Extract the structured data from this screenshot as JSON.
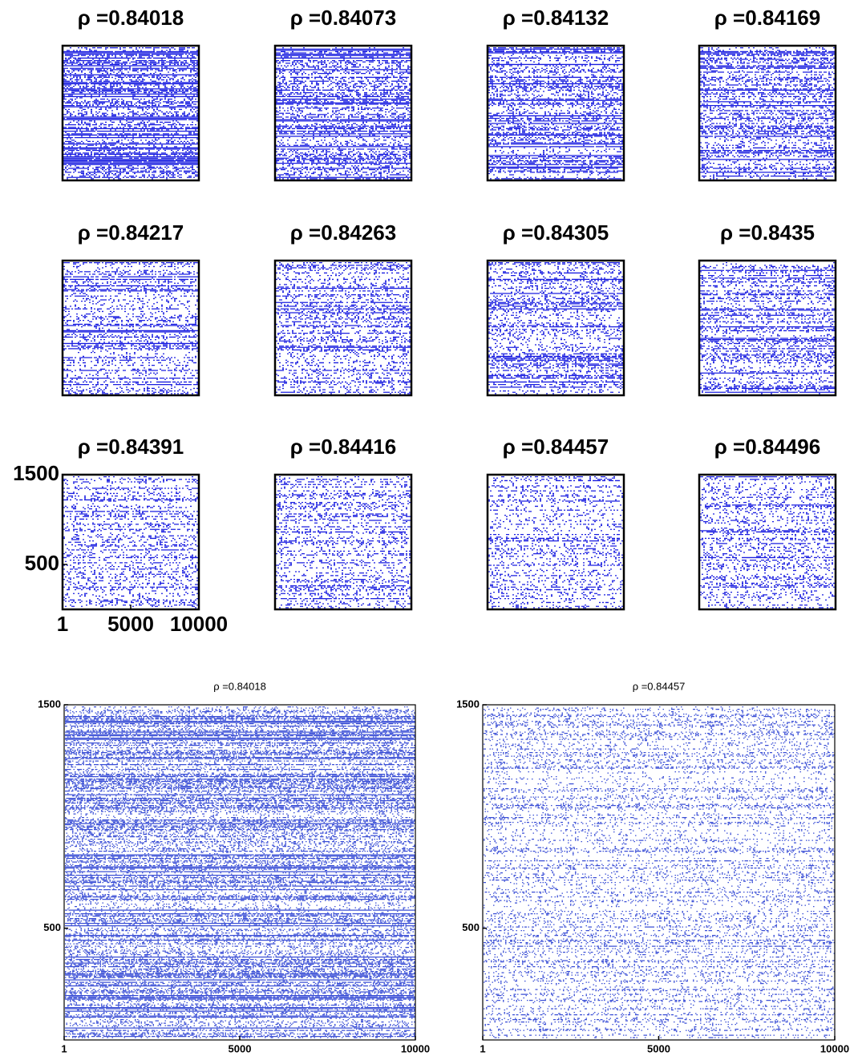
{
  "chart_data": [
    {
      "type": "spy",
      "title": "ρ =0.84018",
      "xlim": [
        1,
        10000
      ],
      "ylim": [
        0,
        1500
      ]
    },
    {
      "type": "spy",
      "title": "ρ =0.84073",
      "xlim": [
        1,
        10000
      ],
      "ylim": [
        0,
        1500
      ]
    },
    {
      "type": "spy",
      "title": "ρ =0.84132",
      "xlim": [
        1,
        10000
      ],
      "ylim": [
        0,
        1500
      ]
    },
    {
      "type": "spy",
      "title": "ρ =0.84169",
      "xlim": [
        1,
        10000
      ],
      "ylim": [
        0,
        1500
      ]
    },
    {
      "type": "spy",
      "title": "ρ =0.84217",
      "xlim": [
        1,
        10000
      ],
      "ylim": [
        0,
        1500
      ]
    },
    {
      "type": "spy",
      "title": "ρ =0.84263",
      "xlim": [
        1,
        10000
      ],
      "ylim": [
        0,
        1500
      ]
    },
    {
      "type": "spy",
      "title": "ρ =0.84305",
      "xlim": [
        1,
        10000
      ],
      "ylim": [
        0,
        1500
      ]
    },
    {
      "type": "spy",
      "title": "ρ =0.8435",
      "xlim": [
        1,
        10000
      ],
      "ylim": [
        0,
        1500
      ]
    },
    {
      "type": "spy",
      "title": "ρ =0.84391",
      "xlim": [
        1,
        10000
      ],
      "ylim": [
        0,
        1500
      ],
      "xticks": [
        1,
        5000,
        10000
      ],
      "yticks": [
        500,
        1500
      ]
    },
    {
      "type": "spy",
      "title": "ρ =0.84416",
      "xlim": [
        1,
        10000
      ],
      "ylim": [
        0,
        1500
      ]
    },
    {
      "type": "spy",
      "title": "ρ =0.84457",
      "xlim": [
        1,
        10000
      ],
      "ylim": [
        0,
        1500
      ]
    },
    {
      "type": "spy",
      "title": "ρ =0.84496",
      "xlim": [
        1,
        10000
      ],
      "ylim": [
        0,
        1500
      ]
    },
    {
      "type": "spy",
      "title": "ρ =0.84018",
      "xlim": [
        1,
        10000
      ],
      "ylim": [
        0,
        1500
      ],
      "xticks": [
        1,
        5000,
        10000
      ],
      "yticks": [
        500,
        1500
      ]
    },
    {
      "type": "spy",
      "title": "ρ =0.84457",
      "xlim": [
        1,
        10000
      ],
      "ylim": [
        0,
        1500
      ],
      "xticks": [
        1,
        5000,
        10000
      ],
      "yticks": [
        500,
        1500
      ]
    }
  ]
}
